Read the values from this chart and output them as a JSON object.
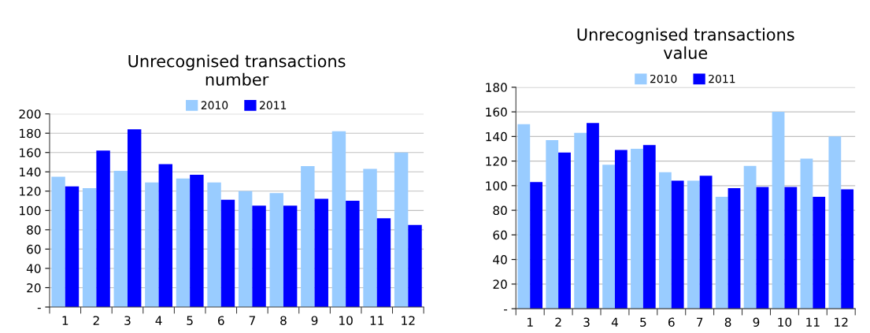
{
  "chart_data": [
    {
      "type": "bar",
      "title": "Unrecognised transactions\nnumber",
      "categories": [
        "1",
        "2",
        "3",
        "4",
        "5",
        "6",
        "7",
        "8",
        "9",
        "10",
        "11",
        "12"
      ],
      "series": [
        {
          "name": "2010",
          "color": "#99ccff",
          "values": [
            135,
            123,
            141,
            129,
            133,
            129,
            120,
            118,
            146,
            182,
            143,
            160
          ]
        },
        {
          "name": "2011",
          "color": "#0000ff",
          "values": [
            125,
            162,
            184,
            148,
            137,
            111,
            105,
            105,
            112,
            110,
            92,
            85
          ]
        }
      ],
      "ylim": [
        0,
        200
      ],
      "yticks": [
        {
          "value": 0,
          "label": "-"
        },
        20,
        40,
        60,
        80,
        100,
        120,
        140,
        160,
        180,
        200
      ],
      "grid": "y",
      "legend": "top"
    },
    {
      "type": "bar",
      "title": "Unrecognised transactions\nvalue",
      "categories": [
        "1",
        "2",
        "3",
        "4",
        "5",
        "6",
        "7",
        "8",
        "9",
        "10",
        "11",
        "12"
      ],
      "series": [
        {
          "name": "2010",
          "color": "#99ccff",
          "values": [
            150,
            137,
            143,
            117,
            130,
            111,
            104,
            91,
            116,
            160,
            122,
            140
          ]
        },
        {
          "name": "2011",
          "color": "#0000ff",
          "values": [
            103,
            127,
            151,
            129,
            133,
            104,
            108,
            98,
            99,
            99,
            91,
            97
          ]
        }
      ],
      "ylim": [
        0,
        180
      ],
      "yticks": [
        {
          "value": 0,
          "label": "-"
        },
        20,
        40,
        60,
        80,
        100,
        120,
        140,
        160,
        180
      ],
      "grid": "y",
      "legend": "top"
    }
  ]
}
